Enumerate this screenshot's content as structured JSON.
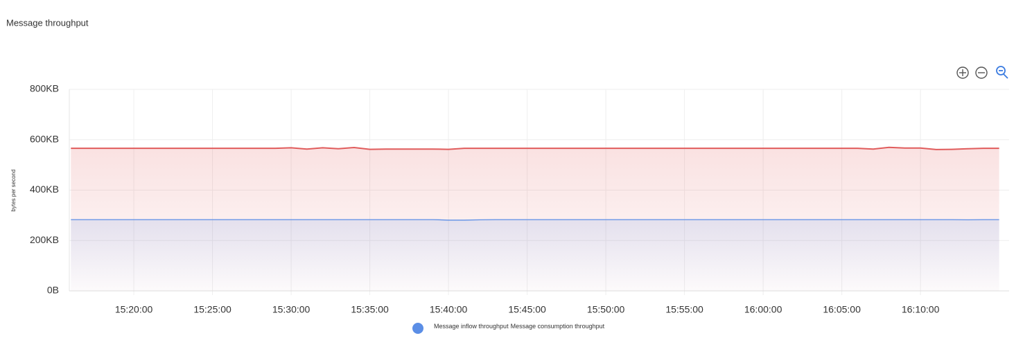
{
  "chart_data": {
    "type": "area-line",
    "title": "Message throughput",
    "y_label": "bytes per second",
    "x": [
      "15:16:00",
      "15:17:00",
      "15:18:00",
      "15:19:00",
      "15:20:00",
      "15:21:00",
      "15:22:00",
      "15:23:00",
      "15:24:00",
      "15:25:00",
      "15:26:00",
      "15:27:00",
      "15:28:00",
      "15:29:00",
      "15:30:00",
      "15:31:00",
      "15:32:00",
      "15:33:00",
      "15:34:00",
      "15:35:00",
      "15:36:00",
      "15:37:00",
      "15:38:00",
      "15:39:00",
      "15:40:00",
      "15:41:00",
      "15:42:00",
      "15:43:00",
      "15:44:00",
      "15:45:00",
      "15:46:00",
      "15:47:00",
      "15:48:00",
      "15:49:00",
      "15:50:00",
      "15:51:00",
      "15:52:00",
      "15:53:00",
      "15:54:00",
      "15:55:00",
      "15:56:00",
      "15:57:00",
      "15:58:00",
      "15:59:00",
      "16:00:00",
      "16:01:00",
      "16:02:00",
      "16:03:00",
      "16:04:00",
      "16:05:00",
      "16:06:00",
      "16:07:00",
      "16:08:00",
      "16:09:00",
      "16:10:00",
      "16:11:00",
      "16:12:00",
      "16:13:00",
      "16:14:00",
      "16:15:00"
    ],
    "series": [
      {
        "name": "Message inflow throughput",
        "color": "#5b8ee6",
        "values": [
          283,
          283,
          283,
          283,
          283,
          283,
          283,
          283,
          283,
          283,
          283,
          283,
          283,
          283,
          283,
          283,
          283,
          283,
          283,
          283,
          283,
          283,
          283,
          283,
          281,
          281,
          282,
          283,
          283,
          283,
          283,
          283,
          283,
          283,
          283,
          283,
          283,
          283,
          283,
          283,
          283,
          283,
          283,
          283,
          283,
          283,
          283,
          283,
          283,
          283,
          283,
          283,
          283,
          283,
          283,
          283,
          283,
          282,
          283,
          283
        ]
      },
      {
        "name": "Message consumption throughput",
        "color": "#e05b5b",
        "values": [
          566,
          566,
          566,
          566,
          566,
          566,
          566,
          566,
          566,
          566,
          566,
          566,
          566,
          566,
          568,
          563,
          568,
          564,
          569,
          562,
          563,
          563,
          563,
          563,
          562,
          566,
          566,
          566,
          566,
          566,
          566,
          566,
          566,
          566,
          566,
          566,
          566,
          566,
          566,
          566,
          566,
          566,
          566,
          566,
          566,
          566,
          566,
          566,
          566,
          566,
          566,
          563,
          570,
          567,
          567,
          561,
          562,
          564,
          566,
          566
        ]
      }
    ],
    "xlim": [
      "15:15:54",
      "16:15:38"
    ],
    "xticks": [
      "15:20:00",
      "15:25:00",
      "15:30:00",
      "15:35:00",
      "15:40:00",
      "15:45:00",
      "15:50:00",
      "15:55:00",
      "16:00:00",
      "16:05:00",
      "16:10:00"
    ],
    "ylim": [
      0,
      800
    ],
    "yticks": [
      {
        "value": 0,
        "label": "0B"
      },
      {
        "value": 200,
        "label": "200KB"
      },
      {
        "value": 400,
        "label": "400KB"
      },
      {
        "value": 600,
        "label": "600KB"
      },
      {
        "value": 800,
        "label": "800KB"
      }
    ],
    "grid": true
  }
}
